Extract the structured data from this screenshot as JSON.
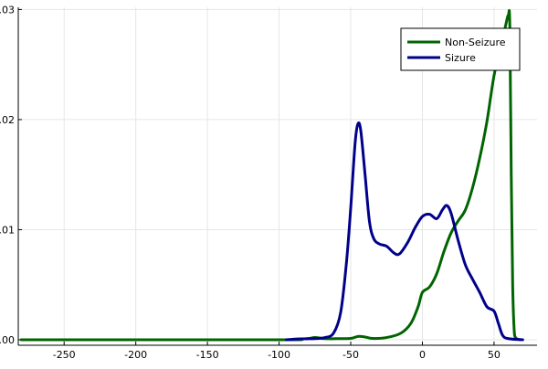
{
  "chart_data": {
    "type": "line",
    "title": "",
    "xlabel": "",
    "ylabel": "",
    "xlim": [
      -282,
      80
    ],
    "ylim": [
      -0.0005,
      0.0302
    ],
    "x_ticks": [
      -250,
      -200,
      -150,
      -100,
      -50,
      0,
      50
    ],
    "x_tick_labels": [
      "-250",
      "-200",
      "-150",
      "-100",
      "-50",
      "0",
      "50"
    ],
    "y_ticks": [
      0.0,
      0.01,
      0.02,
      0.03
    ],
    "y_tick_labels": [
      ".00",
      ".01",
      ".02",
      ".03"
    ],
    "grid": true,
    "legend_position": "top-right",
    "series": [
      {
        "name": "Non-Seizure",
        "color": "#006400",
        "points": [
          [
            -280,
            0.0
          ],
          [
            -100,
            0.0
          ],
          [
            -90,
            5e-05
          ],
          [
            -80,
            0.0001
          ],
          [
            -75,
            0.0002
          ],
          [
            -68,
            0.0001
          ],
          [
            -60,
            0.0001
          ],
          [
            -50,
            0.00012
          ],
          [
            -45,
            0.0003
          ],
          [
            -40,
            0.00025
          ],
          [
            -35,
            0.00012
          ],
          [
            -25,
            0.0002
          ],
          [
            -15,
            0.0006
          ],
          [
            -8,
            0.0015
          ],
          [
            -3,
            0.003
          ],
          [
            0,
            0.0043
          ],
          [
            5,
            0.0048
          ],
          [
            10,
            0.006
          ],
          [
            15,
            0.008
          ],
          [
            20,
            0.0097
          ],
          [
            25,
            0.0108
          ],
          [
            30,
            0.0118
          ],
          [
            35,
            0.0138
          ],
          [
            40,
            0.0165
          ],
          [
            45,
            0.0198
          ],
          [
            50,
            0.024
          ],
          [
            55,
            0.0268
          ],
          [
            58,
            0.0285
          ],
          [
            60,
            0.0295
          ],
          [
            61,
            0.0285
          ],
          [
            62,
            0.015
          ],
          [
            63,
            0.005
          ],
          [
            64,
            0.001
          ],
          [
            65,
            0.0002
          ],
          [
            68,
            0.0
          ]
        ]
      },
      {
        "name": "Sizure",
        "color": "#00008B",
        "points": [
          [
            -95,
            0.0
          ],
          [
            -85,
            8e-05
          ],
          [
            -75,
            0.0001
          ],
          [
            -68,
            0.0002
          ],
          [
            -62,
            0.0006
          ],
          [
            -57,
            0.0025
          ],
          [
            -53,
            0.007
          ],
          [
            -50,
            0.012
          ],
          [
            -47,
            0.0178
          ],
          [
            -45,
            0.0196
          ],
          [
            -43,
            0.019
          ],
          [
            -40,
            0.015
          ],
          [
            -37,
            0.0108
          ],
          [
            -34,
            0.0092
          ],
          [
            -30,
            0.0087
          ],
          [
            -25,
            0.0085
          ],
          [
            -20,
            0.0079
          ],
          [
            -16,
            0.0078
          ],
          [
            -10,
            0.0089
          ],
          [
            -5,
            0.0102
          ],
          [
            0,
            0.0112
          ],
          [
            5,
            0.0114
          ],
          [
            10,
            0.011
          ],
          [
            14,
            0.0118
          ],
          [
            17,
            0.0122
          ],
          [
            20,
            0.0115
          ],
          [
            25,
            0.009
          ],
          [
            30,
            0.0068
          ],
          [
            35,
            0.0055
          ],
          [
            40,
            0.0043
          ],
          [
            45,
            0.003
          ],
          [
            50,
            0.0026
          ],
          [
            53,
            0.0015
          ],
          [
            56,
            0.0004
          ],
          [
            60,
            0.0001
          ],
          [
            70,
            0.0
          ]
        ]
      }
    ]
  }
}
